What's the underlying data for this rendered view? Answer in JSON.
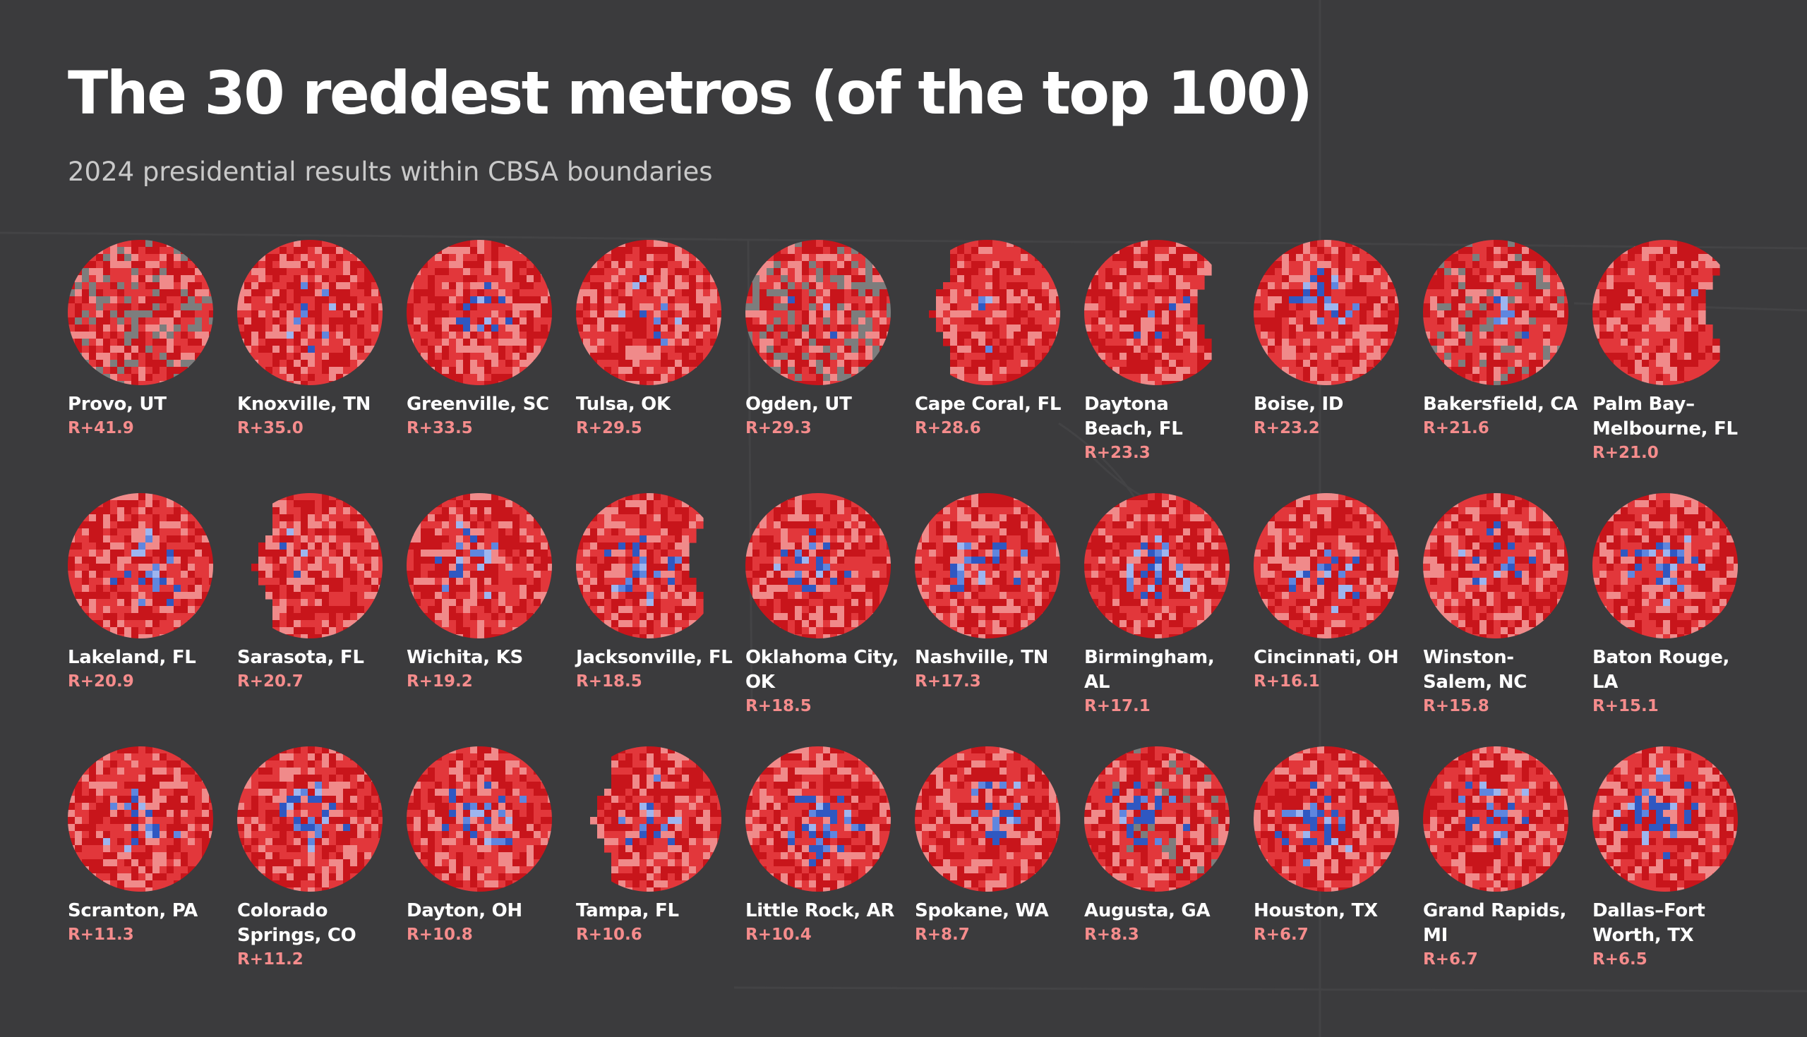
{
  "title": "The 30 reddest metros (of the top 100)",
  "subtitle": "2024 presidential results within CBSA boundaries",
  "colors": {
    "background": "#3b3b3d",
    "republican_dark": "#c8151b",
    "republican_mid": "#e2373b",
    "republican_light": "#f08a8a",
    "democrat_light": "#9db5ef",
    "democrat_mid": "#5f86df",
    "democrat_dark": "#2f58c2",
    "no_data": "#7d7d7d",
    "margin_text": "#f58c8c"
  },
  "metros": [
    {
      "name": "Provo, UT",
      "margin": "R+41.9",
      "shape": "circle",
      "nodata": 0.2,
      "blue_center": 0.0
    },
    {
      "name": "Knoxville, TN",
      "margin": "R+35.0",
      "shape": "circle",
      "nodata": 0.0,
      "blue_center": 0.25
    },
    {
      "name": "Greenville, SC",
      "margin": "R+33.5",
      "shape": "circle",
      "nodata": 0.0,
      "blue_center": 0.25
    },
    {
      "name": "Tulsa, OK",
      "margin": "R+29.5",
      "shape": "circle",
      "nodata": 0.0,
      "blue_center": 0.25
    },
    {
      "name": "Ogden, UT",
      "margin": "R+29.3",
      "shape": "circle",
      "nodata": 0.25,
      "blue_center": 0.1
    },
    {
      "name": "Cape Coral, FL",
      "margin": "R+28.6",
      "shape": "coast-west",
      "nodata": 0.0,
      "blue_center": 0.1
    },
    {
      "name": "Daytona Beach, FL",
      "margin": "R+23.3",
      "shape": "coast-east",
      "nodata": 0.0,
      "blue_center": 0.15
    },
    {
      "name": "Boise, ID",
      "margin": "R+23.2",
      "shape": "circle",
      "nodata": 0.0,
      "blue_center": 0.3
    },
    {
      "name": "Bakersfield, CA",
      "margin": "R+21.6",
      "shape": "circle",
      "nodata": 0.12,
      "blue_center": 0.15
    },
    {
      "name": "Palm Bay–Melbourne, FL",
      "margin": "R+21.0",
      "shape": "coast-east",
      "nodata": 0.0,
      "blue_center": 0.2
    },
    {
      "name": "Lakeland, FL",
      "margin": "R+20.9",
      "shape": "circle",
      "nodata": 0.0,
      "blue_center": 0.3
    },
    {
      "name": "Sarasota, FL",
      "margin": "R+20.7",
      "shape": "coast-west",
      "nodata": 0.0,
      "blue_center": 0.1
    },
    {
      "name": "Wichita, KS",
      "margin": "R+19.2",
      "shape": "circle",
      "nodata": 0.0,
      "blue_center": 0.3
    },
    {
      "name": "Jacksonville, FL",
      "margin": "R+18.5",
      "shape": "coast-east",
      "nodata": 0.0,
      "blue_center": 0.45
    },
    {
      "name": "Oklahoma City, OK",
      "margin": "R+18.5",
      "shape": "circle",
      "nodata": 0.0,
      "blue_center": 0.45
    },
    {
      "name": "Nashville, TN",
      "margin": "R+17.3",
      "shape": "circle",
      "nodata": 0.0,
      "blue_center": 0.45
    },
    {
      "name": "Birmingham, AL",
      "margin": "R+17.1",
      "shape": "circle",
      "nodata": 0.0,
      "blue_center": 0.5
    },
    {
      "name": "Cincinnati, OH",
      "margin": "R+16.1",
      "shape": "circle",
      "nodata": 0.0,
      "blue_center": 0.4
    },
    {
      "name": "Winston-Salem, NC",
      "margin": "R+15.8",
      "shape": "circle",
      "nodata": 0.0,
      "blue_center": 0.45
    },
    {
      "name": "Baton Rouge, LA",
      "margin": "R+15.1",
      "shape": "circle",
      "nodata": 0.0,
      "blue_center": 0.55
    },
    {
      "name": "Scranton, PA",
      "margin": "R+11.3",
      "shape": "circle",
      "nodata": 0.0,
      "blue_center": 0.45
    },
    {
      "name": "Colorado Springs, CO",
      "margin": "R+11.2",
      "shape": "circle",
      "nodata": 0.0,
      "blue_center": 0.45
    },
    {
      "name": "Dayton, OH",
      "margin": "R+10.8",
      "shape": "circle",
      "nodata": 0.0,
      "blue_center": 0.6
    },
    {
      "name": "Tampa, FL",
      "margin": "R+10.6",
      "shape": "coast-west",
      "nodata": 0.0,
      "blue_center": 0.6
    },
    {
      "name": "Little Rock, AR",
      "margin": "R+10.4",
      "shape": "circle",
      "nodata": 0.0,
      "blue_center": 0.6
    },
    {
      "name": "Spokane, WA",
      "margin": "R+8.7",
      "shape": "circle",
      "nodata": 0.0,
      "blue_center": 0.5
    },
    {
      "name": "Augusta, GA",
      "margin": "R+8.3",
      "shape": "circle",
      "nodata": 0.06,
      "blue_center": 0.6
    },
    {
      "name": "Houston, TX",
      "margin": "R+6.7",
      "shape": "circle",
      "nodata": 0.0,
      "blue_center": 0.7
    },
    {
      "name": "Grand Rapids, MI",
      "margin": "R+6.7",
      "shape": "circle",
      "nodata": 0.0,
      "blue_center": 0.5
    },
    {
      "name": "Dallas–Fort Worth, TX",
      "margin": "R+6.5",
      "shape": "circle",
      "nodata": 0.0,
      "blue_center": 0.7
    }
  ]
}
